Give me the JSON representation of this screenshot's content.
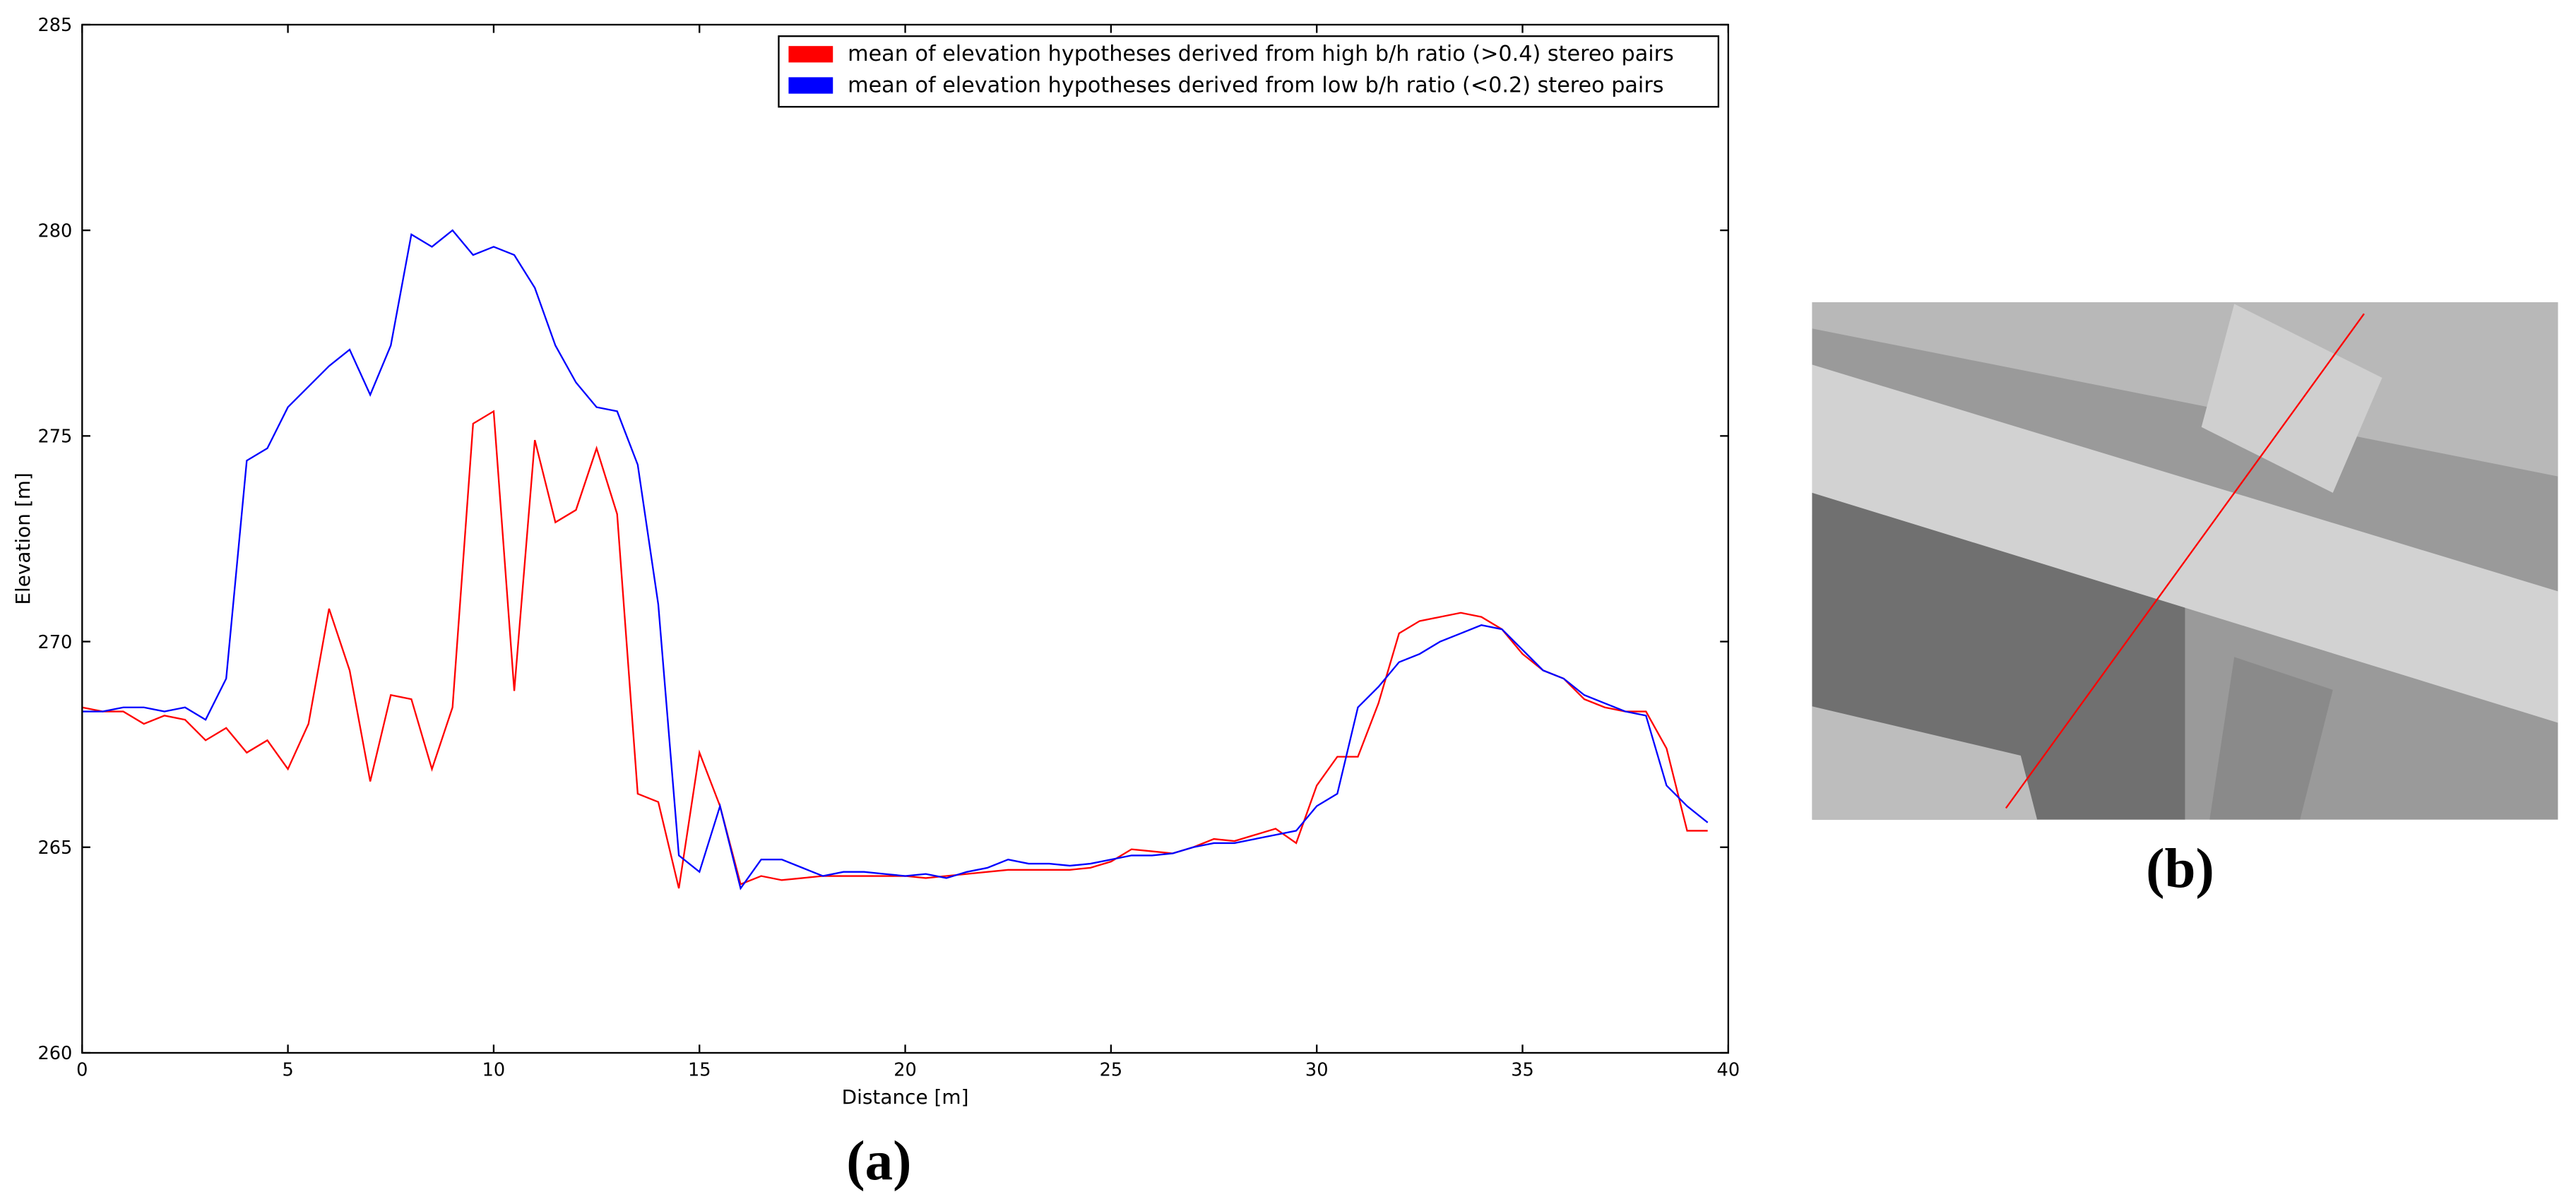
{
  "chart_data": {
    "type": "line",
    "xlabel": "Distance [m]",
    "ylabel": "Elevation [m]",
    "caption": "(a)",
    "image_caption": "(b)",
    "xlim": [
      0,
      40
    ],
    "ylim": [
      260,
      285
    ],
    "xticks": [
      0,
      5,
      10,
      15,
      20,
      25,
      30,
      35,
      40
    ],
    "yticks": [
      260,
      265,
      270,
      275,
      280,
      285
    ],
    "legend": "upper right",
    "x": [
      0,
      0.5,
      1,
      1.5,
      2,
      2.5,
      3,
      3.5,
      4,
      4.5,
      5,
      5.5,
      6,
      6.5,
      7,
      7.5,
      8,
      8.5,
      9,
      9.5,
      10,
      10.5,
      11,
      11.5,
      12,
      12.5,
      13,
      13.5,
      14,
      14.5,
      15,
      15.5,
      16,
      16.5,
      17,
      17.5,
      18,
      18.5,
      19,
      19.5,
      20,
      20.5,
      21,
      21.5,
      22,
      22.5,
      23,
      23.5,
      24,
      24.5,
      25,
      25.5,
      26,
      26.5,
      27,
      27.5,
      28,
      28.5,
      29,
      29.5,
      30,
      30.5,
      31,
      31.5,
      32,
      32.5,
      33,
      33.5,
      34,
      34.5,
      35,
      35.5,
      36,
      36.5,
      37,
      37.5,
      38,
      38.5,
      39,
      39.5
    ],
    "series": [
      {
        "name": "mean of elevation hypotheses derived from high b/h ratio (>0.4) stereo pairs",
        "color": "#ff0000",
        "values": [
          268.4,
          268.3,
          268.3,
          268.0,
          268.2,
          268.1,
          267.6,
          267.9,
          267.3,
          267.6,
          266.9,
          268.0,
          270.8,
          269.3,
          266.6,
          268.7,
          268.6,
          266.9,
          268.4,
          275.3,
          275.6,
          268.8,
          274.9,
          272.9,
          273.2,
          274.7,
          273.1,
          266.3,
          266.1,
          264.0,
          267.3,
          266.0,
          264.1,
          264.3,
          264.2,
          264.25,
          264.3,
          264.3,
          264.3,
          264.3,
          264.3,
          264.25,
          264.3,
          264.35,
          264.4,
          264.45,
          264.45,
          264.45,
          264.45,
          264.5,
          264.65,
          264.95,
          264.9,
          264.85,
          265.0,
          265.2,
          265.15,
          265.3,
          265.45,
          265.1,
          266.5,
          267.2,
          267.2,
          268.5,
          270.2,
          270.5,
          270.6,
          270.7,
          270.6,
          270.3,
          269.7,
          269.3,
          269.1,
          268.6,
          268.4,
          268.3,
          268.3,
          267.4,
          265.4,
          265.4
        ]
      },
      {
        "name": "mean of elevation hypotheses derived from low b/h ratio (<0.2) stereo pairs",
        "color": "#0000ff",
        "values": [
          268.3,
          268.3,
          268.4,
          268.4,
          268.3,
          268.4,
          268.1,
          269.1,
          274.4,
          274.7,
          275.7,
          276.2,
          276.7,
          277.1,
          276.0,
          277.2,
          279.9,
          279.6,
          280.0,
          279.4,
          279.6,
          279.4,
          278.6,
          277.2,
          276.3,
          275.7,
          275.6,
          274.3,
          270.9,
          264.8,
          264.4,
          266.0,
          264.0,
          264.7,
          264.7,
          264.5,
          264.3,
          264.4,
          264.4,
          264.35,
          264.3,
          264.35,
          264.25,
          264.4,
          264.5,
          264.7,
          264.6,
          264.6,
          264.55,
          264.6,
          264.7,
          264.8,
          264.8,
          264.85,
          265.0,
          265.1,
          265.1,
          265.2,
          265.3,
          265.4,
          266.0,
          266.3,
          268.4,
          268.9,
          269.5,
          269.7,
          270.0,
          270.2,
          270.4,
          270.3,
          269.8,
          269.3,
          269.1,
          268.7,
          268.5,
          268.3,
          268.2,
          266.5,
          266.0,
          265.6
        ]
      }
    ]
  }
}
